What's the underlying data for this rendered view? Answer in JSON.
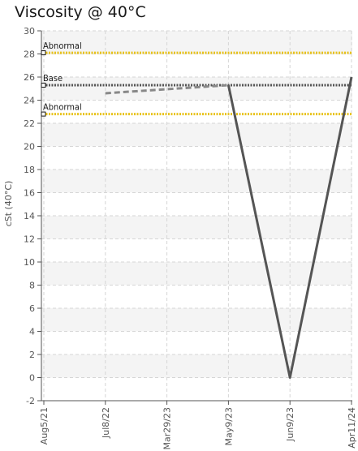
{
  "chart_data": {
    "type": "line",
    "title": "Viscosity @ 40°C",
    "ylabel": "cSt (40°C)",
    "xlabel": "",
    "ylim": [
      -2,
      30
    ],
    "y_ticks": [
      -2,
      0,
      2,
      4,
      6,
      8,
      10,
      12,
      14,
      16,
      18,
      20,
      22,
      24,
      26,
      28,
      30
    ],
    "categories": [
      "Aug5/21",
      "Jul8/22",
      "Mar29/23",
      "May9/23",
      "Jun9/23",
      "Apr11/24"
    ],
    "series": [
      {
        "name": "",
        "style": "solid",
        "color": "#555555",
        "points": [
          [
            "May9/23",
            25.3
          ],
          [
            "Jun9/23",
            0.0
          ],
          [
            "Apr11/24",
            26.0
          ]
        ]
      },
      {
        "name": "",
        "style": "dashed",
        "color": "#888888",
        "points": [
          [
            "Jul8/22",
            24.6
          ],
          [
            "May9/23",
            25.3
          ]
        ]
      }
    ],
    "reference_lines": [
      {
        "label": "Abnormal",
        "value": 28.1,
        "color": "#e8c21a",
        "style": "dotted"
      },
      {
        "label": "Base",
        "value": 25.3,
        "color": "#555555",
        "style": "dotted"
      },
      {
        "label": "Abnormal",
        "value": 22.8,
        "color": "#e8c21a",
        "style": "dotted"
      }
    ],
    "grid": true,
    "legend": "none"
  }
}
